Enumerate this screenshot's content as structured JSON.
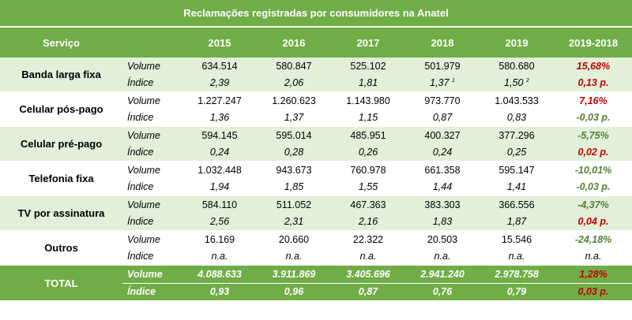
{
  "title": "Reclamações registradas por consumidores na Anatel",
  "header": {
    "service": "Serviço",
    "years": [
      "2015",
      "2016",
      "2017",
      "2018",
      "2019"
    ],
    "diff": "2019-2018"
  },
  "labels": {
    "volume": "Volume",
    "index": "Índice"
  },
  "rows": [
    {
      "service": "Banda larga fixa",
      "volume": [
        "634.514",
        "580.847",
        "525.102",
        "501.979",
        "580.680"
      ],
      "volume_diff": "15,68%",
      "index": [
        "2,39",
        "2,06",
        "1,81",
        "1,37",
        "1,50"
      ],
      "index_notes": [
        "",
        "",
        "",
        "1",
        "2"
      ],
      "index_diff": "0,13 p."
    },
    {
      "service": "Celular pós-pago",
      "volume": [
        "1.227.247",
        "1.260.623",
        "1.143.980",
        "973.770",
        "1.043.533"
      ],
      "volume_diff": "7,16%",
      "index": [
        "1,36",
        "1,37",
        "1,15",
        "0,87",
        "0,83"
      ],
      "index_notes": [
        "",
        "",
        "",
        "",
        ""
      ],
      "index_diff": "-0,03 p."
    },
    {
      "service": "Celular pré-pago",
      "volume": [
        "594.145",
        "595.014",
        "485.951",
        "400.327",
        "377.296"
      ],
      "volume_diff": "-5,75%",
      "index": [
        "0,24",
        "0,28",
        "0,26",
        "0,24",
        "0,25"
      ],
      "index_notes": [
        "",
        "",
        "",
        "",
        ""
      ],
      "index_diff": "0,02 p."
    },
    {
      "service": "Telefonia fixa",
      "volume": [
        "1.032.448",
        "943.673",
        "760.978",
        "661.358",
        "595.147"
      ],
      "volume_diff": "-10,01%",
      "index": [
        "1,94",
        "1,85",
        "1,55",
        "1,44",
        "1,41"
      ],
      "index_notes": [
        "",
        "",
        "",
        "",
        ""
      ],
      "index_diff": "-0,03 p."
    },
    {
      "service": "TV por assinatura",
      "volume": [
        "584.110",
        "511.052",
        "467.363",
        "383.303",
        "366.556"
      ],
      "volume_diff": "-4,37%",
      "index": [
        "2,56",
        "2,31",
        "2,16",
        "1,83",
        "1,87"
      ],
      "index_notes": [
        "",
        "",
        "",
        "",
        ""
      ],
      "index_diff": "0,04 p."
    },
    {
      "service": "Outros",
      "volume": [
        "16.169",
        "20.660",
        "22.322",
        "20.503",
        "15.546"
      ],
      "volume_diff": "-24,18%",
      "index": [
        "n.a.",
        "n.a.",
        "n.a.",
        "n.a.",
        "n.a."
      ],
      "index_notes": [
        "",
        "",
        "",
        "",
        ""
      ],
      "index_diff": "n.a."
    }
  ],
  "total": {
    "service": "TOTAL",
    "volume": [
      "4.088.633",
      "3.911.869",
      "3.405.696",
      "2.941.240",
      "2.978.758"
    ],
    "volume_diff": "1,28%",
    "index": [
      "0,93",
      "0,96",
      "0,87",
      "0,76",
      "0,79"
    ],
    "index_diff": "0,03 p."
  },
  "colors": {
    "header_green": "#70ad47",
    "band_green": "#e2efd9",
    "positive_red": "#c00000",
    "negative_green": "#538135"
  }
}
